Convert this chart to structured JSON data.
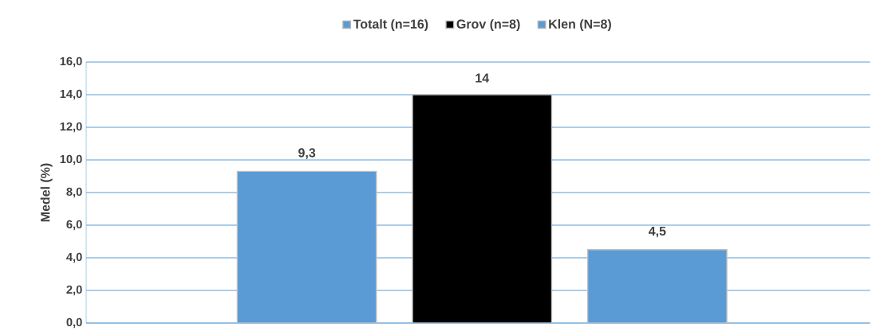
{
  "chart_data": {
    "type": "bar",
    "categories": [
      null
    ],
    "series": [
      {
        "name": "Totalt (n=16)",
        "color": "#5b9bd5",
        "values": [
          9.3
        ],
        "value_labels": [
          "9,3"
        ]
      },
      {
        "name": "Grov (n=8)",
        "color": "#000000",
        "values": [
          14
        ],
        "value_labels": [
          "14"
        ]
      },
      {
        "name": "Klen (N=8)",
        "color": "#5b9bd5",
        "values": [
          4.5
        ],
        "value_labels": [
          "4,5"
        ]
      }
    ],
    "ylabel": "Medel  (%)",
    "ylim": [
      0,
      16
    ],
    "yticks": [
      {
        "value": 0,
        "label": "0,0"
      },
      {
        "value": 2,
        "label": "2,0"
      },
      {
        "value": 4,
        "label": "4,0"
      },
      {
        "value": 6,
        "label": "6,0"
      },
      {
        "value": 8,
        "label": "8,0"
      },
      {
        "value": 10,
        "label": "10,0"
      },
      {
        "value": 12,
        "label": "12,0"
      },
      {
        "value": 14,
        "label": "14,0"
      },
      {
        "value": 16,
        "label": "16,0"
      }
    ],
    "grid": "y",
    "legend": "top"
  }
}
